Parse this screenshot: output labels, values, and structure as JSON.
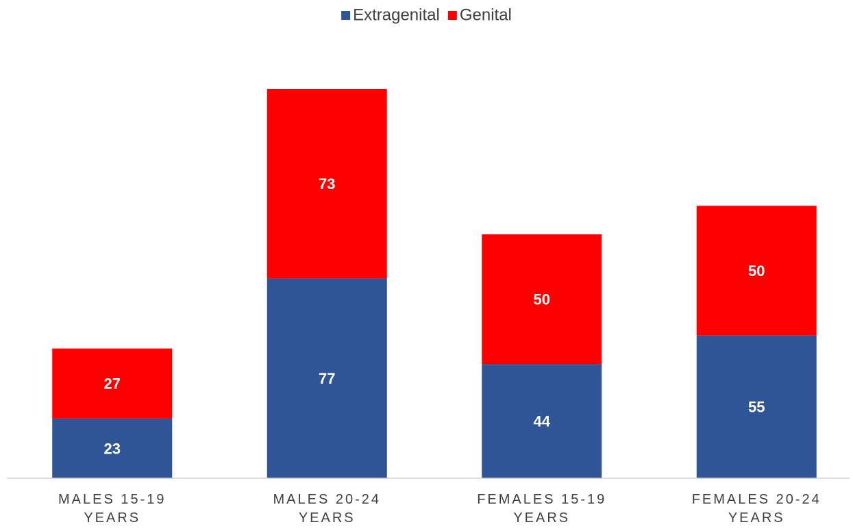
{
  "chart_data": {
    "type": "stacked_bar",
    "categories": [
      "MALES 15-19 YEARS",
      "MALES 20-24 YEARS",
      "FEMALES 15-19 YEARS",
      "FEMALES 20-24 YEARS"
    ],
    "series": [
      {
        "name": "Extragenital",
        "color": "#2f5597",
        "values": [
          23,
          77,
          44,
          55
        ]
      },
      {
        "name": "Genital",
        "color": "#ff0000",
        "values": [
          27,
          73,
          50,
          50
        ]
      }
    ],
    "legend": "top"
  }
}
